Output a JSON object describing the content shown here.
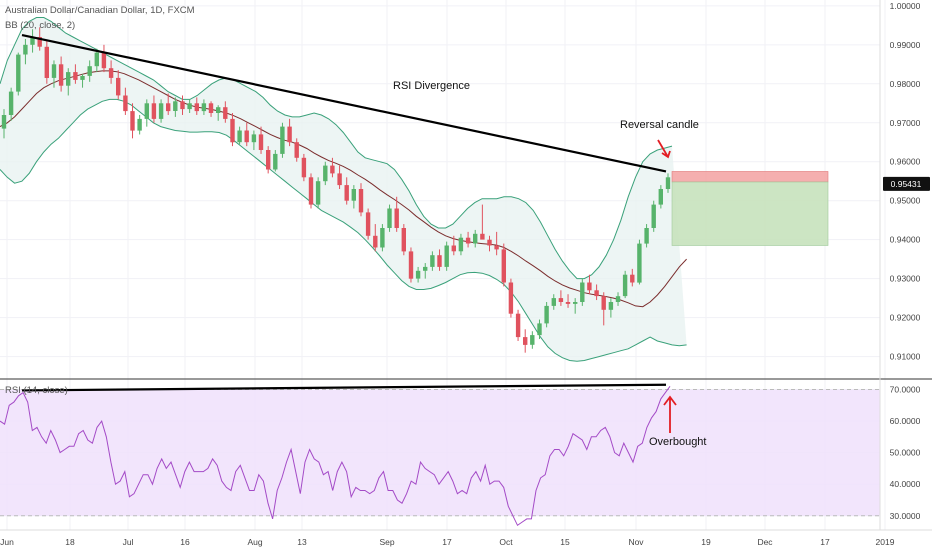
{
  "header": {
    "title": "Australian Dollar/Canadian Dollar, 1D, FXCM",
    "bb_label": "BB (20, close, 2)",
    "rsi_label": "RSI (14, close)"
  },
  "annotations": {
    "rsi_divergence": "RSI Divergence",
    "reversal_candle": "Reversal candle",
    "overbought": "Overbought"
  },
  "colors": {
    "up": "#57b36b",
    "down": "#e0525e",
    "bb_band": "#3aa17a",
    "bb_basis": "#7b2d2d",
    "bb_fill": "#e8f3f1",
    "rsi_line": "#a44bc7",
    "rsi_fill": "#f0e0fb",
    "trendline": "#000000",
    "arrow": "#e31e24",
    "stop_zone": "#f4a6a6",
    "target_zone": "#c6e2bc",
    "price_tag": "#111111"
  },
  "chart_data": [
    {
      "type": "candlestick",
      "title": "Australian Dollar/Canadian Dollar, 1D, FXCM",
      "price_axis_labels": [
        "1.00000",
        "0.99000",
        "0.98000",
        "0.97000",
        "0.96000",
        "0.95000",
        "0.94000",
        "0.93000",
        "0.92000",
        "0.91000"
      ],
      "ylim": [
        0.9045,
        1.0015
      ],
      "last_price": "0.95431",
      "x_tick_labels": [
        "Jun",
        "18",
        "Jul",
        "16",
        "Aug",
        "13",
        "Sep",
        "17",
        "Oct",
        "15",
        "Nov",
        "19",
        "Dec",
        "17",
        "2019"
      ],
      "candles_ohlc": [
        [
          0.9685,
          0.9735,
          0.966,
          0.972
        ],
        [
          0.972,
          0.979,
          0.9705,
          0.978
        ],
        [
          0.978,
          0.988,
          0.977,
          0.9875
        ],
        [
          0.9875,
          0.9915,
          0.985,
          0.99
        ],
        [
          0.99,
          0.994,
          0.988,
          0.992
        ],
        [
          0.992,
          0.9945,
          0.9885,
          0.9895
        ],
        [
          0.9895,
          0.991,
          0.98,
          0.9815
        ],
        [
          0.9815,
          0.986,
          0.979,
          0.985
        ],
        [
          0.985,
          0.987,
          0.978,
          0.9795
        ],
        [
          0.9795,
          0.984,
          0.977,
          0.983
        ],
        [
          0.983,
          0.985,
          0.98,
          0.981
        ],
        [
          0.981,
          0.9825,
          0.979,
          0.982
        ],
        [
          0.982,
          0.986,
          0.9805,
          0.9845
        ],
        [
          0.9845,
          0.989,
          0.983,
          0.988
        ],
        [
          0.988,
          0.99,
          0.983,
          0.984
        ],
        [
          0.984,
          0.986,
          0.98,
          0.9815
        ],
        [
          0.9815,
          0.9835,
          0.976,
          0.977
        ],
        [
          0.977,
          0.979,
          0.972,
          0.973
        ],
        [
          0.973,
          0.975,
          0.966,
          0.968
        ],
        [
          0.968,
          0.972,
          0.967,
          0.971
        ],
        [
          0.971,
          0.976,
          0.969,
          0.975
        ],
        [
          0.975,
          0.977,
          0.97,
          0.971
        ],
        [
          0.971,
          0.976,
          0.97,
          0.975
        ],
        [
          0.975,
          0.9775,
          0.972,
          0.973
        ],
        [
          0.973,
          0.9765,
          0.9715,
          0.9755
        ],
        [
          0.9755,
          0.977,
          0.972,
          0.9735
        ],
        [
          0.9735,
          0.976,
          0.9725,
          0.975
        ],
        [
          0.975,
          0.9765,
          0.972,
          0.973
        ],
        [
          0.973,
          0.976,
          0.972,
          0.975
        ],
        [
          0.975,
          0.9755,
          0.9715,
          0.9725
        ],
        [
          0.9725,
          0.9745,
          0.9705,
          0.974
        ],
        [
          0.974,
          0.9755,
          0.97,
          0.971
        ],
        [
          0.971,
          0.9725,
          0.964,
          0.965
        ],
        [
          0.965,
          0.969,
          0.9645,
          0.968
        ],
        [
          0.968,
          0.97,
          0.964,
          0.965
        ],
        [
          0.965,
          0.968,
          0.963,
          0.967
        ],
        [
          0.967,
          0.969,
          0.962,
          0.963
        ],
        [
          0.963,
          0.964,
          0.957,
          0.958
        ],
        [
          0.958,
          0.963,
          0.9575,
          0.962
        ],
        [
          0.962,
          0.97,
          0.961,
          0.969
        ],
        [
          0.969,
          0.971,
          0.964,
          0.965
        ],
        [
          0.965,
          0.966,
          0.96,
          0.961
        ],
        [
          0.961,
          0.962,
          0.955,
          0.956
        ],
        [
          0.956,
          0.957,
          0.948,
          0.949
        ],
        [
          0.949,
          0.956,
          0.948,
          0.955
        ],
        [
          0.955,
          0.96,
          0.954,
          0.959
        ],
        [
          0.959,
          0.961,
          0.956,
          0.957
        ],
        [
          0.957,
          0.959,
          0.953,
          0.954
        ],
        [
          0.954,
          0.956,
          0.949,
          0.95
        ],
        [
          0.95,
          0.954,
          0.948,
          0.953
        ],
        [
          0.953,
          0.9545,
          0.946,
          0.947
        ],
        [
          0.947,
          0.948,
          0.94,
          0.941
        ],
        [
          0.941,
          0.944,
          0.937,
          0.938
        ],
        [
          0.938,
          0.944,
          0.937,
          0.943
        ],
        [
          0.943,
          0.949,
          0.942,
          0.948
        ],
        [
          0.948,
          0.951,
          0.942,
          0.943
        ],
        [
          0.943,
          0.944,
          0.936,
          0.937
        ],
        [
          0.937,
          0.938,
          0.929,
          0.93
        ],
        [
          0.93,
          0.933,
          0.929,
          0.932
        ],
        [
          0.932,
          0.934,
          0.93,
          0.933
        ],
        [
          0.933,
          0.937,
          0.932,
          0.936
        ],
        [
          0.936,
          0.9375,
          0.932,
          0.933
        ],
        [
          0.933,
          0.9395,
          0.932,
          0.9385
        ],
        [
          0.9385,
          0.941,
          0.936,
          0.937
        ],
        [
          0.937,
          0.9415,
          0.936,
          0.9405
        ],
        [
          0.9405,
          0.942,
          0.938,
          0.939
        ],
        [
          0.939,
          0.9425,
          0.938,
          0.9415
        ],
        [
          0.9415,
          0.949,
          0.9405,
          0.94
        ],
        [
          0.94,
          0.941,
          0.937,
          0.9385
        ],
        [
          0.9385,
          0.942,
          0.936,
          0.9375
        ],
        [
          0.9375,
          0.939,
          0.928,
          0.929
        ],
        [
          0.929,
          0.93,
          0.92,
          0.921
        ],
        [
          0.921,
          0.922,
          0.914,
          0.915
        ],
        [
          0.915,
          0.917,
          0.911,
          0.913
        ],
        [
          0.913,
          0.9165,
          0.912,
          0.9155
        ],
        [
          0.9155,
          0.9195,
          0.9145,
          0.9185
        ],
        [
          0.9185,
          0.924,
          0.9175,
          0.923
        ],
        [
          0.923,
          0.926,
          0.922,
          0.925
        ],
        [
          0.925,
          0.927,
          0.923,
          0.924
        ],
        [
          0.924,
          0.926,
          0.9225,
          0.9235
        ],
        [
          0.9235,
          0.925,
          0.921,
          0.924
        ],
        [
          0.924,
          0.93,
          0.923,
          0.929
        ],
        [
          0.929,
          0.931,
          0.926,
          0.927
        ],
        [
          0.927,
          0.9285,
          0.9245,
          0.9255
        ],
        [
          0.9255,
          0.9265,
          0.918,
          0.922
        ],
        [
          0.922,
          0.925,
          0.92,
          0.924
        ],
        [
          0.924,
          0.9265,
          0.923,
          0.9255
        ],
        [
          0.9255,
          0.932,
          0.925,
          0.931
        ],
        [
          0.931,
          0.9325,
          0.928,
          0.929
        ],
        [
          0.929,
          0.94,
          0.9285,
          0.939
        ],
        [
          0.939,
          0.944,
          0.938,
          0.943
        ],
        [
          0.943,
          0.95,
          0.942,
          0.949
        ],
        [
          0.949,
          0.954,
          0.948,
          0.953
        ],
        [
          0.953,
          0.957,
          0.952,
          0.956
        ]
      ],
      "bb_upper": [
        0.98,
        0.986,
        0.99,
        0.994,
        0.996,
        0.997,
        0.997,
        0.996,
        0.9945,
        0.993,
        0.992,
        0.991,
        0.99,
        0.989,
        0.988,
        0.987,
        0.986,
        0.985,
        0.984,
        0.983,
        0.982,
        0.981,
        0.9795,
        0.978,
        0.977,
        0.976,
        0.976,
        0.977,
        0.9785,
        0.98,
        0.981,
        0.9815,
        0.981,
        0.98,
        0.979,
        0.978,
        0.9765,
        0.9745,
        0.973,
        0.972,
        0.9715,
        0.9715,
        0.972,
        0.9725,
        0.972,
        0.971,
        0.9695,
        0.9675,
        0.965,
        0.9625,
        0.961,
        0.9605,
        0.96,
        0.9595,
        0.958,
        0.9555,
        0.9525,
        0.949,
        0.946,
        0.944,
        0.943,
        0.943,
        0.944,
        0.946,
        0.948,
        0.9495,
        0.9505,
        0.9505,
        0.9505,
        0.951,
        0.951,
        0.9505,
        0.9495,
        0.9475,
        0.9445,
        0.941,
        0.9375,
        0.9345,
        0.932,
        0.93,
        0.93,
        0.931,
        0.933,
        0.936,
        0.94,
        0.945,
        0.951,
        0.956,
        0.96,
        0.962,
        0.963,
        0.9635,
        0.964
      ],
      "bb_basis": [
        0.969,
        0.97,
        0.9715,
        0.9735,
        0.9755,
        0.9775,
        0.979,
        0.98,
        0.9808,
        0.9813,
        0.9818,
        0.9823,
        0.9828,
        0.9831,
        0.9833,
        0.9833,
        0.9831,
        0.9826,
        0.9818,
        0.981,
        0.98,
        0.979,
        0.978,
        0.977,
        0.976,
        0.9752,
        0.9745,
        0.974,
        0.9737,
        0.9734,
        0.973,
        0.9725,
        0.9718,
        0.971,
        0.97,
        0.969,
        0.968,
        0.967,
        0.9662,
        0.9655,
        0.965,
        0.9643,
        0.9634,
        0.9622,
        0.9612,
        0.9603,
        0.9596,
        0.9588,
        0.9578,
        0.9566,
        0.9555,
        0.9542,
        0.9528,
        0.9515,
        0.9503,
        0.949,
        0.9476,
        0.946,
        0.9446,
        0.9432,
        0.942,
        0.941,
        0.9403,
        0.9398,
        0.9395,
        0.9392,
        0.939,
        0.9388,
        0.9386,
        0.938,
        0.937,
        0.9358,
        0.9345,
        0.9333,
        0.932,
        0.9306,
        0.9294,
        0.9284,
        0.9276,
        0.927,
        0.9264,
        0.926,
        0.9257,
        0.9254,
        0.925,
        0.9245,
        0.9238,
        0.923,
        0.9228,
        0.924,
        0.9258,
        0.928,
        0.9305,
        0.933,
        0.935
      ],
      "bb_lower": [
        0.958,
        0.956,
        0.9545,
        0.955,
        0.957,
        0.96,
        0.9625,
        0.9645,
        0.966,
        0.968,
        0.97,
        0.972,
        0.9735,
        0.9745,
        0.9755,
        0.976,
        0.976,
        0.9755,
        0.9745,
        0.973,
        0.9715,
        0.97,
        0.969,
        0.9685,
        0.968,
        0.9678,
        0.9676,
        0.9676,
        0.9677,
        0.9677,
        0.9675,
        0.9668,
        0.9655,
        0.964,
        0.9625,
        0.961,
        0.9595,
        0.958,
        0.9565,
        0.955,
        0.9535,
        0.952,
        0.9505,
        0.949,
        0.9475,
        0.9465,
        0.9455,
        0.9445,
        0.9432,
        0.9418,
        0.94,
        0.938,
        0.9358,
        0.9335,
        0.9315,
        0.9295,
        0.928,
        0.9272,
        0.9272,
        0.9275,
        0.9282,
        0.929,
        0.93,
        0.931,
        0.9315,
        0.9316,
        0.9314,
        0.9308,
        0.9298,
        0.9285,
        0.9265,
        0.924,
        0.921,
        0.918,
        0.915,
        0.9125,
        0.9108,
        0.9097,
        0.909,
        0.9088,
        0.909,
        0.9095,
        0.91,
        0.9105,
        0.911,
        0.9115,
        0.912,
        0.913,
        0.914,
        0.915,
        0.914,
        0.9135,
        0.913,
        0.9128,
        0.913
      ],
      "trade_zone": {
        "stop_top": 0.9575,
        "entry": 0.9548,
        "target": 0.9385
      }
    },
    {
      "type": "line",
      "title": "RSI (14, close)",
      "y_tick_labels": [
        "70.0000",
        "60.0000",
        "50.0000",
        "40.0000",
        "30.0000"
      ],
      "ylim": [
        25.5,
        73
      ],
      "levels": [
        70,
        30
      ],
      "values": [
        60,
        59,
        65,
        66,
        68,
        69,
        66,
        57,
        58,
        55,
        53,
        57,
        54,
        50,
        51,
        52,
        52,
        56,
        57,
        54,
        53,
        58,
        60,
        55,
        47,
        40,
        41,
        44,
        36,
        37,
        40,
        43,
        43,
        40,
        45,
        48,
        45,
        47,
        43,
        39,
        44,
        47,
        44,
        44,
        44,
        45,
        48,
        46,
        41,
        39,
        38,
        44,
        46,
        42,
        38,
        38,
        43,
        41,
        34,
        29,
        38,
        42,
        47,
        51,
        44,
        37,
        47,
        51,
        48,
        47,
        43,
        44,
        38,
        44,
        47,
        44,
        36,
        39,
        38,
        38,
        37,
        38,
        42,
        44,
        38,
        38,
        35,
        34,
        37,
        41,
        40,
        47,
        45,
        44,
        43,
        40,
        42,
        44,
        41,
        37,
        38,
        37,
        42,
        44,
        41,
        46,
        40,
        41,
        41,
        39,
        33,
        30,
        27,
        28,
        29,
        29,
        38,
        42,
        43,
        49,
        51,
        51,
        49,
        52,
        56,
        55,
        54,
        51,
        55,
        55,
        57,
        58,
        55,
        50,
        49,
        53,
        50,
        47,
        52,
        53,
        58,
        61,
        63,
        67,
        69,
        71
      ]
    }
  ]
}
